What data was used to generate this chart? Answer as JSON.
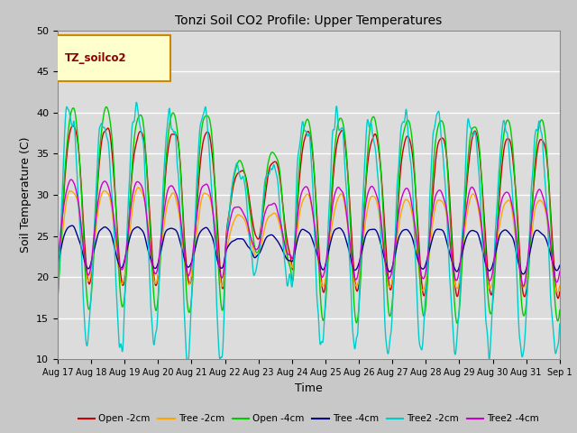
{
  "title": "Tonzi Soil CO2 Profile: Upper Temperatures",
  "xlabel": "Time",
  "ylabel": "Soil Temperature (C)",
  "ylim": [
    10,
    50
  ],
  "background_color": "#dcdcdc",
  "grid_color": "#ffffff",
  "legend_label": "TZ_soilco2",
  "series_labels": [
    "Open -2cm",
    "Tree -2cm",
    "Open -4cm",
    "Tree -4cm",
    "Tree2 -2cm",
    "Tree2 -4cm"
  ],
  "series_colors": [
    "#cc0000",
    "#ffa500",
    "#00cc00",
    "#00008b",
    "#00cccc",
    "#cc00cc"
  ],
  "xtick_labels": [
    "Aug 17",
    "Aug 18",
    "Aug 19",
    "Aug 20",
    "Aug 21",
    "Aug 22",
    "Aug 23",
    "Aug 24",
    "Aug 25",
    "Aug 26",
    "Aug 27",
    "Aug 28",
    "Aug 29",
    "Aug 30",
    "Aug 31",
    "Sep 1"
  ],
  "n_days": 15,
  "pts_per_day": 144
}
